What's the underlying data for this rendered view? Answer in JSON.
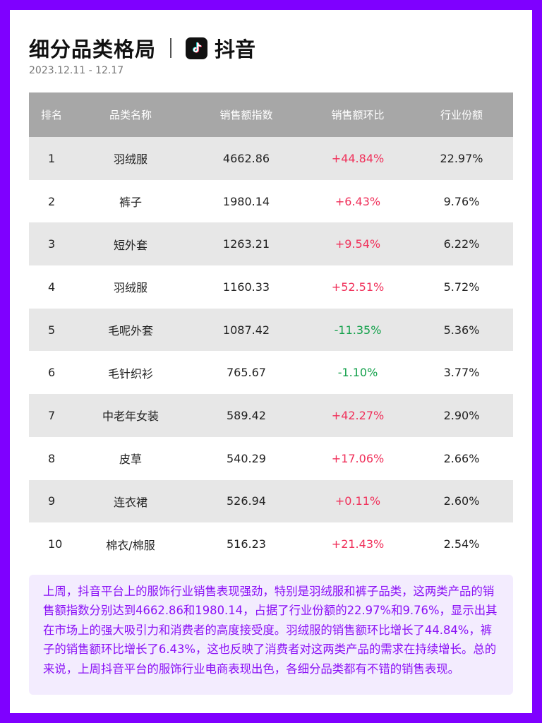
{
  "header": {
    "title": "细分品类格局",
    "platform": "抖音",
    "logo_icon": "douyin-logo-icon",
    "date_range": "2023.12.11 - 12.17"
  },
  "table": {
    "columns": [
      "排名",
      "品类名称",
      "销售额指数",
      "销售额环比",
      "行业份额"
    ],
    "rows": [
      {
        "rank": "1",
        "name": "羽绒服",
        "index": "4662.86",
        "change": "+44.84%",
        "trend": "up",
        "share": "22.97%"
      },
      {
        "rank": "2",
        "name": "裤子",
        "index": "1980.14",
        "change": "+6.43%",
        "trend": "up",
        "share": "9.76%"
      },
      {
        "rank": "3",
        "name": "短外套",
        "index": "1263.21",
        "change": "+9.54%",
        "trend": "up",
        "share": "6.22%"
      },
      {
        "rank": "4",
        "name": "羽绒服",
        "index": "1160.33",
        "change": "+52.51%",
        "trend": "up",
        "share": "5.72%"
      },
      {
        "rank": "5",
        "name": "毛呢外套",
        "index": "1087.42",
        "change": "-11.35%",
        "trend": "down",
        "share": "5.36%"
      },
      {
        "rank": "6",
        "name": "毛针织衫",
        "index": "765.67",
        "change": "-1.10%",
        "trend": "down",
        "share": "3.77%"
      },
      {
        "rank": "7",
        "name": "中老年女装",
        "index": "589.42",
        "change": "+42.27%",
        "trend": "up",
        "share": "2.90%"
      },
      {
        "rank": "8",
        "name": "皮草",
        "index": "540.29",
        "change": "+17.06%",
        "trend": "up",
        "share": "2.66%"
      },
      {
        "rank": "9",
        "name": "连衣裙",
        "index": "526.94",
        "change": "+0.11%",
        "trend": "up",
        "share": "2.60%"
      },
      {
        "rank": "10",
        "name": "棉衣/棉服",
        "index": "516.23",
        "change": "+21.43%",
        "trend": "up",
        "share": "2.54%"
      }
    ]
  },
  "summary": "上周，抖音平台上的服饰行业销售表现强劲，特别是羽绒服和裤子品类，这两类产品的销售额指数分别达到4662.86和1980.14，占据了行业份额的22.97%和9.76%，显示出其在市场上的强大吸引力和消费者的高度接受度。羽绒服的销售额环比增长了44.84%，裤子的销售额环比增长了6.43%，这也反映了消费者对这两类产品的需求在持续增长。总的来说，上周抖音平台的服饰行业电商表现出色，各细分品类都有不错的销售表现。",
  "colors": {
    "frame": "#7f00ff",
    "header_bg": "#a7a7a7",
    "positive": "#f0305a",
    "negative": "#12a04a",
    "summary_text": "#8a10f5",
    "summary_bg": "#f3ecfe"
  }
}
